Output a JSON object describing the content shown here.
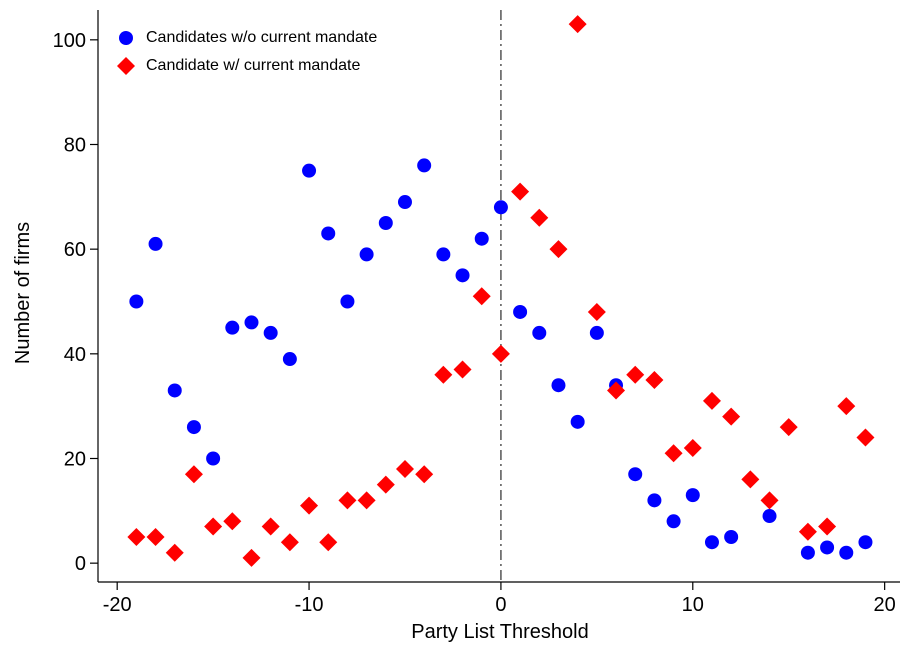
{
  "chart_data": {
    "type": "scatter",
    "x_label": "Party List Threshold",
    "y_label": "Number of firms",
    "xlim": [
      -21,
      20.8
    ],
    "ylim": [
      -3.6,
      105.7
    ],
    "xticks": [
      -20,
      -10,
      0,
      10,
      20
    ],
    "yticks": [
      0,
      20,
      40,
      60,
      80,
      100
    ],
    "vline": 0,
    "legend": "upper left",
    "series": [
      {
        "name": "Candidates w/o current mandate",
        "color": "#0000ff",
        "marker": "circle",
        "x": [
          -19,
          -18,
          -17,
          -16,
          -15,
          -14,
          -13,
          -12,
          -11,
          -10,
          -9,
          -8,
          -7,
          -6,
          -5,
          -4,
          -3,
          -2,
          -1,
          0,
          1,
          2,
          3,
          4,
          5,
          6,
          7,
          8,
          9,
          10,
          11,
          12,
          14,
          16,
          17,
          18,
          19
        ],
        "values": [
          50,
          61,
          33,
          26,
          20,
          45,
          46,
          44,
          39,
          75,
          63,
          50,
          59,
          65,
          69,
          76,
          59,
          55,
          62,
          68,
          48,
          44,
          34,
          27,
          44,
          34,
          17,
          12,
          8,
          13,
          4,
          5,
          9,
          2,
          3,
          2,
          4
        ]
      },
      {
        "name": "Candidate w/ current mandate",
        "color": "#ff0000",
        "marker": "diamond",
        "x": [
          -19,
          -18,
          -17,
          -16,
          -15,
          -14,
          -13,
          -12,
          -11,
          -10,
          -9,
          -8,
          -7,
          -6,
          -5,
          -4,
          -3,
          -2,
          -1,
          0,
          1,
          2,
          3,
          4,
          5,
          6,
          7,
          8,
          9,
          10,
          11,
          12,
          13,
          14,
          15,
          16,
          17,
          18,
          19
        ],
        "values": [
          5,
          5,
          2,
          17,
          7,
          8,
          1,
          7,
          4,
          11,
          4,
          12,
          12,
          15,
          18,
          17,
          36,
          37,
          51,
          40,
          71,
          66,
          60,
          103,
          48,
          33,
          36,
          35,
          21,
          22,
          31,
          28,
          16,
          12,
          26,
          6,
          7,
          30,
          24
        ]
      }
    ]
  }
}
